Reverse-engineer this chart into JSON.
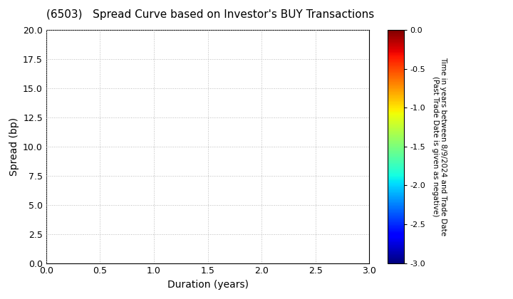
{
  "title": "(6503)   Spread Curve based on Investor's BUY Transactions",
  "xlabel": "Duration (years)",
  "ylabel": "Spread (bp)",
  "xlim": [
    0.0,
    3.0
  ],
  "ylim": [
    0.0,
    20.0
  ],
  "xticks": [
    0.0,
    0.5,
    1.0,
    1.5,
    2.0,
    2.5,
    3.0
  ],
  "yticks": [
    0.0,
    2.5,
    5.0,
    7.5,
    10.0,
    12.5,
    15.0,
    17.5,
    20.0
  ],
  "colorbar_min": -3.0,
  "colorbar_max": 0.0,
  "colorbar_ticks": [
    0.0,
    -0.5,
    -1.0,
    -1.5,
    -2.0,
    -2.5,
    -3.0
  ],
  "colorbar_label": "Time in years between 8/9/2024 and Trade Date\n(Past Trade Date is given as negative)",
  "colormap": "jet",
  "background_color": "#ffffff",
  "grid_color": "#bbbbbb",
  "title_fontsize": 11,
  "axis_label_fontsize": 10,
  "tick_fontsize": 9,
  "cbar_label_fontsize": 7.5,
  "cbar_tick_fontsize": 8
}
